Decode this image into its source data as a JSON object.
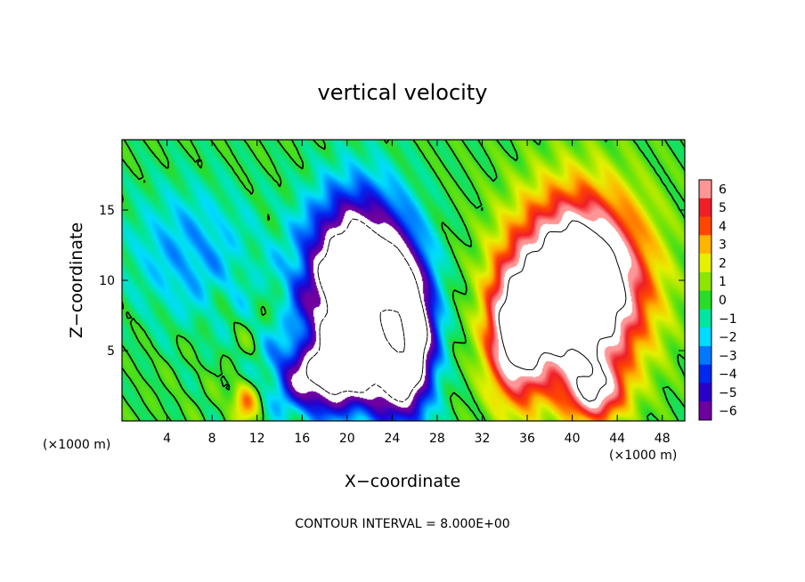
{
  "chart_data": {
    "type": "heatmap",
    "title": "vertical velocity",
    "xlabel": "X−coordinate",
    "ylabel": "Z−coordinate",
    "x_unit": "(×1000 m)",
    "y_unit": "(×1000 m)",
    "xlim": [
      0,
      50
    ],
    "ylim": [
      0,
      20
    ],
    "x_ticks": [
      4,
      8,
      12,
      16,
      20,
      24,
      28,
      32,
      36,
      40,
      44,
      48
    ],
    "y_ticks": [
      5,
      10,
      15
    ],
    "colorbar": {
      "min": -6,
      "max": 6,
      "labels": [
        "6",
        "5",
        "4",
        "3",
        "2",
        "1",
        "0",
        "−1",
        "−2",
        "−3",
        "−4",
        "−5",
        "−6"
      ],
      "clip_color": "#ffffff"
    },
    "features": [
      {
        "kind": "updraft",
        "x": 40.5,
        "z": 9.5,
        "peak": 14
      },
      {
        "kind": "downdraft",
        "x": 21,
        "z": 9.5,
        "peak": -14
      },
      {
        "kind": "downdraft",
        "x": 25,
        "z": 5.5,
        "peak": -12
      },
      {
        "kind": "updraft",
        "x": 35,
        "z": 6,
        "peak": 8
      },
      {
        "kind": "updraft",
        "x": 11,
        "z": 1.5,
        "peak": 4
      }
    ],
    "footer": "CONTOUR INTERVAL = 8.000E+00"
  }
}
